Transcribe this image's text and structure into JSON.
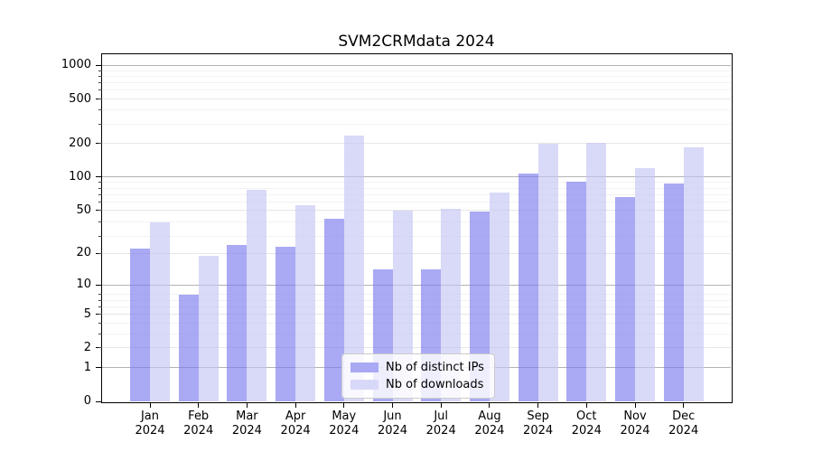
{
  "chart_data": {
    "type": "bar",
    "title": "SVM2CRMdata 2024",
    "categories": [
      "Jan",
      "Feb",
      "Mar",
      "Apr",
      "May",
      "Jun",
      "Jul",
      "Aug",
      "Sep",
      "Oct",
      "Nov",
      "Dec"
    ],
    "category_year": "2024",
    "series": [
      {
        "name": "Nb of distinct IPs",
        "color": "rgba(123,123,238,0.65)",
        "legend_color": "#a9a9f4",
        "values": [
          22,
          8,
          24,
          23,
          42,
          14,
          14,
          49,
          108,
          90,
          66,
          88
        ]
      },
      {
        "name": "Nb of downloads",
        "color": "rgba(196,196,245,0.65)",
        "legend_color": "#d8d8f8",
        "values": [
          39,
          19,
          76,
          56,
          235,
          50,
          51,
          72,
          200,
          203,
          120,
          185
        ]
      }
    ],
    "yscale": "log1p",
    "yticks": [
      0,
      1,
      2,
      5,
      10,
      20,
      50,
      100,
      200,
      500,
      1000
    ],
    "ylim": [
      0,
      1260
    ],
    "grid": true,
    "legend_position": "lower-center",
    "background": "#ffffff",
    "axis_color": "#000000",
    "grid_major_color": "#b3b3b3",
    "grid_medium_color": "#e6e6e6",
    "grid_faint_color": "#f2f2f2"
  }
}
